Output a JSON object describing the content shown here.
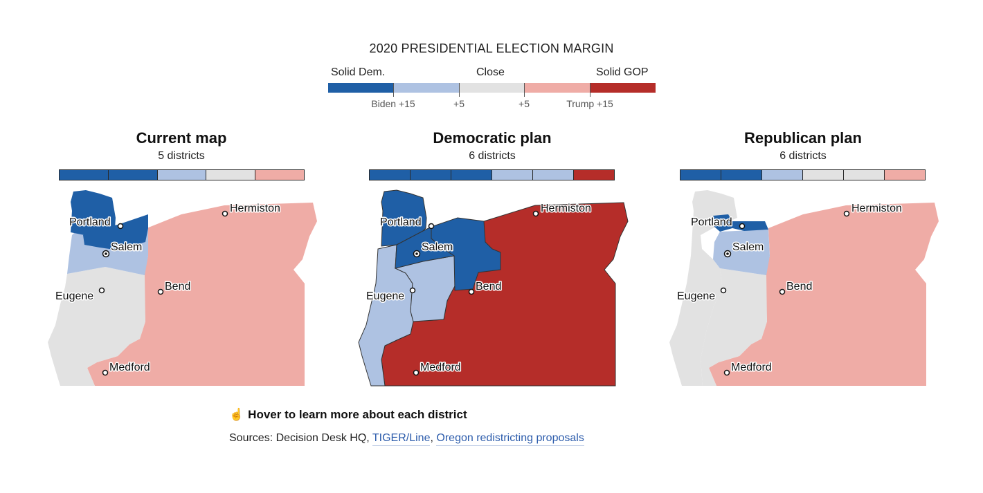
{
  "colors": {
    "solid_dem": "#1f5fa6",
    "lean_dem": "#aec2e2",
    "close": "#e2e2e2",
    "lean_gop": "#efaca6",
    "solid_gop": "#b52d29"
  },
  "legend": {
    "title": "2020 PRESIDENTIAL ELECTION MARGIN",
    "labels": {
      "left": "Solid Dem.",
      "center": "Close",
      "right": "Solid GOP"
    },
    "ticks": [
      "Biden +15",
      "+5",
      "+5",
      "Trump +15"
    ]
  },
  "panels": [
    {
      "title": "Current map",
      "subtitle": "5 districts",
      "districts": [
        "solid_dem",
        "solid_dem",
        "lean_dem",
        "close",
        "lean_gop"
      ]
    },
    {
      "title": "Democratic plan",
      "subtitle": "6 districts",
      "districts": [
        "solid_dem",
        "solid_dem",
        "solid_dem",
        "lean_dem",
        "lean_dem",
        "solid_gop"
      ]
    },
    {
      "title": "Republican plan",
      "subtitle": "6 districts",
      "districts": [
        "solid_dem",
        "solid_dem",
        "lean_dem",
        "close",
        "close",
        "lean_gop"
      ]
    }
  ],
  "cities": [
    "Portland",
    "Salem",
    "Hermiston",
    "Eugene",
    "Bend",
    "Medford"
  ],
  "footer": {
    "hover_text": "Hover to learn more about each district",
    "hover_icon": "pointer-hand-icon",
    "sources_prefix": "Sources: Decision Desk HQ,",
    "source_link_1": "TIGER/Line",
    "source_separator": ",",
    "source_link_2": "Oregon redistricting proposals"
  }
}
